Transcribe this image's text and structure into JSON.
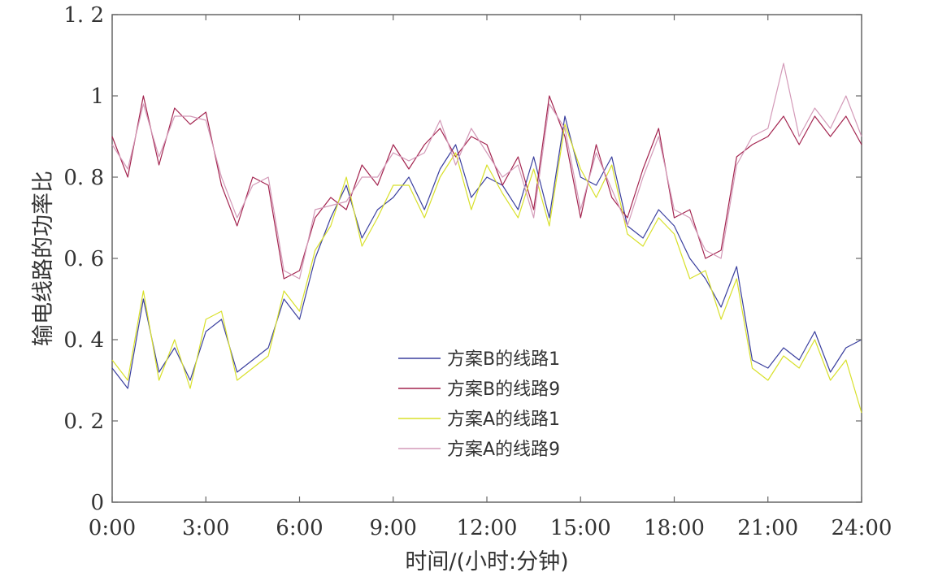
{
  "chart_data": {
    "type": "line",
    "title": "",
    "xlabel": "时间/(小时:分钟)",
    "ylabel": "输电线路的功率比",
    "xlim": [
      0,
      24
    ],
    "ylim": [
      0,
      1.2
    ],
    "grid": false,
    "legend_position": "center",
    "x_ticks": [
      {
        "value": 0,
        "label": "0:00"
      },
      {
        "value": 3,
        "label": "3:00"
      },
      {
        "value": 6,
        "label": "6:00"
      },
      {
        "value": 9,
        "label": "9:00"
      },
      {
        "value": 12,
        "label": "12:00"
      },
      {
        "value": 15,
        "label": "15:00"
      },
      {
        "value": 18,
        "label": "18:00"
      },
      {
        "value": 21,
        "label": "21:00"
      },
      {
        "value": 24,
        "label": "24:00"
      }
    ],
    "y_ticks": [
      {
        "value": 0,
        "label": "0"
      },
      {
        "value": 0.2,
        "label": "0. 2"
      },
      {
        "value": 0.4,
        "label": "0. 4"
      },
      {
        "value": 0.6,
        "label": "0. 6"
      },
      {
        "value": 0.8,
        "label": "0. 8"
      },
      {
        "value": 1.0,
        "label": "1"
      },
      {
        "value": 1.2,
        "label": "1. 2"
      }
    ],
    "x": [
      0,
      0.5,
      1,
      1.5,
      2,
      2.5,
      3,
      3.5,
      4,
      4.5,
      5,
      5.5,
      6,
      6.5,
      7,
      7.5,
      8,
      8.5,
      9,
      9.5,
      10,
      10.5,
      11,
      11.5,
      12,
      12.5,
      13,
      13.5,
      14,
      14.5,
      15,
      15.5,
      16,
      16.5,
      17,
      17.5,
      18,
      18.5,
      19,
      19.5,
      20,
      20.5,
      21,
      21.5,
      22,
      22.5,
      23,
      23.5,
      24
    ],
    "series": [
      {
        "name": "方案B的线路1",
        "color": "#3a3f9e",
        "values": [
          0.33,
          0.28,
          0.5,
          0.32,
          0.38,
          0.3,
          0.42,
          0.45,
          0.32,
          0.35,
          0.38,
          0.5,
          0.45,
          0.6,
          0.7,
          0.78,
          0.65,
          0.72,
          0.75,
          0.8,
          0.72,
          0.82,
          0.88,
          0.75,
          0.8,
          0.78,
          0.72,
          0.85,
          0.7,
          0.95,
          0.8,
          0.78,
          0.85,
          0.68,
          0.65,
          0.72,
          0.68,
          0.6,
          0.55,
          0.48,
          0.58,
          0.35,
          0.33,
          0.38,
          0.35,
          0.42,
          0.32,
          0.38,
          0.4
        ]
      },
      {
        "name": "方案B的线路9",
        "color": "#a3244f",
        "values": [
          0.9,
          0.8,
          1.0,
          0.83,
          0.97,
          0.93,
          0.96,
          0.78,
          0.68,
          0.8,
          0.78,
          0.55,
          0.57,
          0.7,
          0.75,
          0.72,
          0.83,
          0.78,
          0.88,
          0.82,
          0.88,
          0.92,
          0.85,
          0.9,
          0.88,
          0.78,
          0.85,
          0.72,
          1.0,
          0.9,
          0.7,
          0.88,
          0.75,
          0.7,
          0.82,
          0.92,
          0.7,
          0.72,
          0.6,
          0.62,
          0.85,
          0.88,
          0.9,
          0.95,
          0.88,
          0.95,
          0.9,
          0.95,
          0.88
        ]
      },
      {
        "name": "方案A的线路1",
        "color": "#d8e02a",
        "values": [
          0.35,
          0.3,
          0.52,
          0.3,
          0.4,
          0.28,
          0.45,
          0.47,
          0.3,
          0.33,
          0.36,
          0.52,
          0.47,
          0.62,
          0.68,
          0.8,
          0.63,
          0.7,
          0.78,
          0.78,
          0.7,
          0.8,
          0.86,
          0.72,
          0.83,
          0.76,
          0.7,
          0.82,
          0.68,
          0.93,
          0.82,
          0.75,
          0.83,
          0.66,
          0.63,
          0.7,
          0.66,
          0.55,
          0.57,
          0.45,
          0.55,
          0.33,
          0.3,
          0.36,
          0.33,
          0.4,
          0.3,
          0.35,
          0.22
        ]
      },
      {
        "name": "方案A的线路9",
        "color": "#d39ab8",
        "values": [
          0.88,
          0.82,
          0.98,
          0.85,
          0.95,
          0.95,
          0.94,
          0.8,
          0.7,
          0.78,
          0.8,
          0.57,
          0.55,
          0.72,
          0.73,
          0.74,
          0.8,
          0.8,
          0.86,
          0.84,
          0.86,
          0.94,
          0.83,
          0.92,
          0.86,
          0.8,
          0.83,
          0.7,
          0.98,
          0.92,
          0.72,
          0.86,
          0.77,
          0.68,
          0.8,
          0.9,
          0.72,
          0.7,
          0.62,
          0.6,
          0.83,
          0.9,
          0.92,
          1.08,
          0.9,
          0.97,
          0.92,
          1.0,
          0.9
        ]
      }
    ]
  }
}
